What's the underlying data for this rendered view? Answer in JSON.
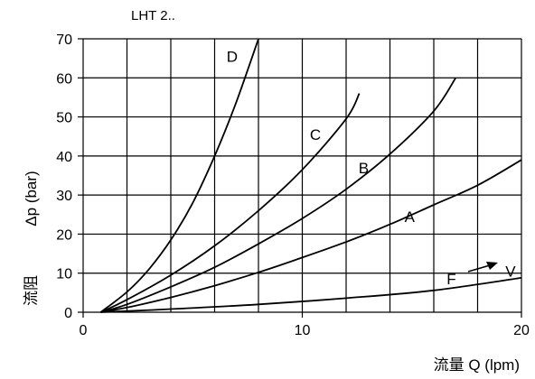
{
  "chart_data": {
    "type": "line",
    "title": "LHT 2..",
    "ylabel_en": "Δp (bar)",
    "ylabel_cn": "流阻",
    "xlabel": "流量 Q (lpm)",
    "xlim": [
      0,
      20
    ],
    "ylim": [
      0,
      70
    ],
    "grid": true,
    "x_ticks": [
      0,
      10,
      20
    ],
    "y_ticks": [
      0,
      10,
      20,
      30,
      40,
      50,
      60,
      70
    ],
    "series": [
      {
        "name": "D",
        "x": [
          0.8,
          2,
          3,
          4,
          5,
          6,
          7,
          8
        ],
        "y": [
          0,
          5.2,
          11,
          18.5,
          28,
          40,
          54,
          70
        ]
      },
      {
        "name": "C",
        "x": [
          0.8,
          2,
          4,
          6,
          8,
          10,
          12,
          12.6
        ],
        "y": [
          0,
          3.2,
          9.5,
          17,
          26,
          36.5,
          49.5,
          56
        ]
      },
      {
        "name": "B",
        "x": [
          0.8,
          2,
          4,
          6,
          8,
          10,
          12,
          14,
          16,
          17
        ],
        "y": [
          0,
          2,
          6.5,
          11.5,
          17.5,
          24,
          31.5,
          40.5,
          51.5,
          60
        ]
      },
      {
        "name": "A",
        "x": [
          0.8,
          2,
          4,
          6,
          8,
          10,
          12,
          14,
          16,
          18,
          20
        ],
        "y": [
          0,
          1.2,
          3.8,
          6.8,
          10.2,
          14,
          18,
          22.5,
          27.5,
          32.5,
          39
        ]
      },
      {
        "name": "F → V",
        "x": [
          0.8,
          4,
          8,
          12,
          16,
          20
        ],
        "y": [
          0,
          0.8,
          2,
          3.6,
          5.6,
          8.8
        ]
      }
    ],
    "curve_labels": [
      {
        "text": "D",
        "x": 6.8,
        "y": 65.5
      },
      {
        "text": "C",
        "x": 10.6,
        "y": 45.5
      },
      {
        "text": "B",
        "x": 12.8,
        "y": 37
      },
      {
        "text": "A",
        "x": 14.9,
        "y": 24.5
      },
      {
        "text": "F",
        "x": 16.8,
        "y": 8.5
      },
      {
        "text": "V",
        "x": 19.5,
        "y": 10.5
      }
    ]
  }
}
